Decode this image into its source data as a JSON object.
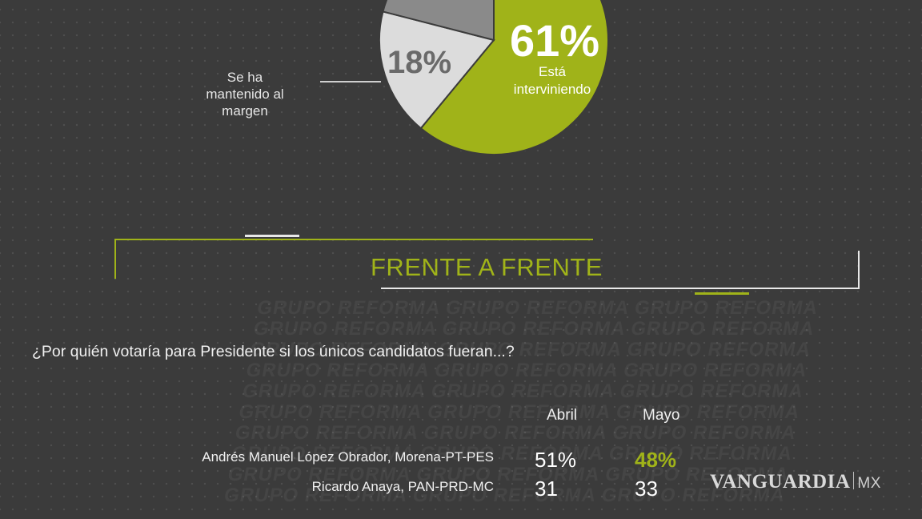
{
  "chart_data": [
    {
      "type": "pie",
      "slices": [
        {
          "label": "Está interviniendo",
          "value": 61,
          "display": "61%",
          "color": "#a0b319"
        },
        {
          "label": "Se ha mantenido al margen",
          "value": 18,
          "display": "18%",
          "color": "#dcdcdc"
        },
        {
          "label": "",
          "value": 21,
          "display": "",
          "color": "#8a8a8a"
        }
      ]
    },
    {
      "type": "table",
      "title": "FRENTE A FRENTE",
      "question": "¿Por quién votaría para Presidente si los únicos candidatos fueran...?",
      "columns": [
        "Abril",
        "Mayo"
      ],
      "rows": [
        {
          "name": "Andrés Manuel López Obrador, Morena-PT-PES",
          "values": [
            "51%",
            "48%"
          ],
          "highlight": "Mayo"
        },
        {
          "name": "Ricardo Anaya, PAN-PRD-MC",
          "values": [
            "31",
            "33"
          ]
        }
      ]
    }
  ],
  "pie_labels": {
    "main_pct": "61%",
    "main_line1": "Está",
    "main_line2": "interviniendo",
    "side_pct": "18%",
    "side_label": "Se ha mantenido al margen"
  },
  "watermark": "GRUPO REFORMA  GRUPO REFORMA  GRUPO REFORMA",
  "brand": {
    "name": "VANGUARDIA",
    "suffix": "MX"
  },
  "colors": {
    "accent": "#a0b319",
    "background": "#3b3b3b",
    "text": "#f0f0f0"
  }
}
